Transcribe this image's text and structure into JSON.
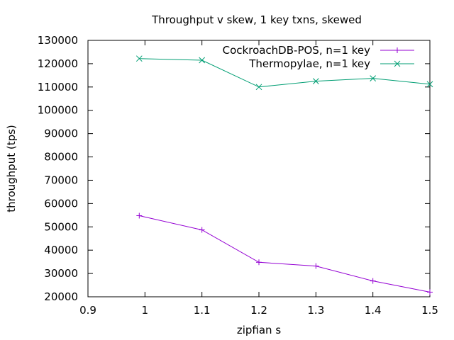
{
  "chart_data": {
    "type": "line",
    "title": "Throughput v skew, 1 key txns, skewed",
    "xlabel": "zipfian s",
    "ylabel": "throughput (tps)",
    "xlim": [
      0.9,
      1.5
    ],
    "ylim": [
      20000,
      130000
    ],
    "xticks": [
      0.9,
      1,
      1.1,
      1.2,
      1.3,
      1.4,
      1.5
    ],
    "xtick_labels": [
      "0.9",
      "1",
      "1.1",
      "1.2",
      "1.3",
      "1.4",
      "1.5"
    ],
    "yticks": [
      20000,
      30000,
      40000,
      50000,
      60000,
      70000,
      80000,
      90000,
      100000,
      110000,
      120000,
      130000
    ],
    "ytick_labels": [
      "20000",
      "30000",
      "40000",
      "50000",
      "60000",
      "70000",
      "80000",
      "90000",
      "100000",
      "110000",
      "120000",
      "130000"
    ],
    "grid": false,
    "legend_position": "top-right",
    "series": [
      {
        "name": "CockroachDB-POS, n=1 key",
        "color": "#9400d3",
        "marker": "plus",
        "x": [
          0.99,
          1.1,
          1.2,
          1.3,
          1.4,
          1.5
        ],
        "y": [
          54800,
          48700,
          34800,
          33200,
          26800,
          22000
        ]
      },
      {
        "name": "Thermopylae, n=1 key",
        "color": "#009e73",
        "marker": "cross",
        "x": [
          0.99,
          1.1,
          1.2,
          1.3,
          1.4,
          1.5
        ],
        "y": [
          122200,
          121500,
          110000,
          112500,
          113700,
          111200
        ]
      }
    ]
  }
}
